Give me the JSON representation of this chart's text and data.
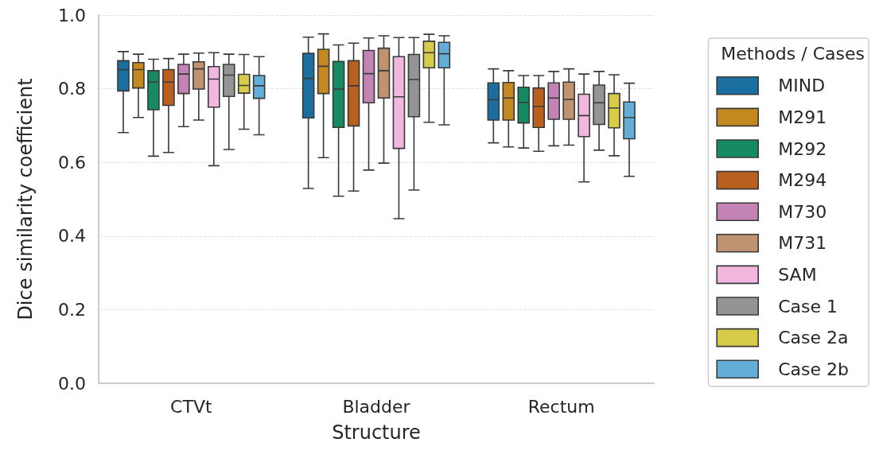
{
  "chart_data": {
    "type": "box",
    "xlabel": "Structure",
    "ylabel": "Dice similarity coefficient",
    "legend_title": "Methods / Cases",
    "legend": "right",
    "grid": "y",
    "categories": [
      "CTVt",
      "Bladder",
      "Rectum"
    ],
    "ylim": [
      0,
      1.0
    ],
    "yticks": [
      {
        "value": 0,
        "label": "0.0"
      },
      {
        "value": 0.2,
        "label": "0.2"
      },
      {
        "value": 0.4,
        "label": "0.4"
      },
      {
        "value": 0.6,
        "label": "0.6"
      },
      {
        "value": 0.8,
        "label": "0.8"
      },
      {
        "value": 1.0,
        "label": "1.0"
      }
    ],
    "series": [
      {
        "name": "MIND",
        "color": "#1a6fa0",
        "boxes": [
          {
            "low": 0.681,
            "q1": 0.794,
            "median": 0.852,
            "q3": 0.876,
            "high": 0.901
          },
          {
            "low": 0.529,
            "q1": 0.721,
            "median": 0.828,
            "q3": 0.896,
            "high": 0.94
          },
          {
            "low": 0.653,
            "q1": 0.715,
            "median": 0.77,
            "q3": 0.816,
            "high": 0.854
          }
        ]
      },
      {
        "name": "M291",
        "color": "#c48820",
        "boxes": [
          {
            "low": 0.722,
            "q1": 0.802,
            "median": 0.852,
            "q3": 0.871,
            "high": 0.894
          },
          {
            "low": 0.613,
            "q1": 0.787,
            "median": 0.861,
            "q3": 0.907,
            "high": 0.949
          },
          {
            "low": 0.642,
            "q1": 0.715,
            "median": 0.775,
            "q3": 0.817,
            "high": 0.849
          }
        ]
      },
      {
        "name": "M292",
        "color": "#168a63",
        "boxes": [
          {
            "low": 0.617,
            "q1": 0.743,
            "median": 0.818,
            "q3": 0.849,
            "high": 0.88
          },
          {
            "low": 0.508,
            "q1": 0.695,
            "median": 0.799,
            "q3": 0.874,
            "high": 0.919
          },
          {
            "low": 0.639,
            "q1": 0.707,
            "median": 0.763,
            "q3": 0.804,
            "high": 0.836
          }
        ]
      },
      {
        "name": "M294",
        "color": "#b9601f",
        "boxes": [
          {
            "low": 0.627,
            "q1": 0.755,
            "median": 0.818,
            "q3": 0.852,
            "high": 0.882
          },
          {
            "low": 0.522,
            "q1": 0.699,
            "median": 0.808,
            "q3": 0.876,
            "high": 0.924
          },
          {
            "low": 0.63,
            "q1": 0.695,
            "median": 0.752,
            "q3": 0.802,
            "high": 0.836
          }
        ]
      },
      {
        "name": "M730",
        "color": "#c383b5",
        "boxes": [
          {
            "low": 0.697,
            "q1": 0.787,
            "median": 0.84,
            "q3": 0.866,
            "high": 0.894
          },
          {
            "low": 0.579,
            "q1": 0.762,
            "median": 0.841,
            "q3": 0.904,
            "high": 0.938
          },
          {
            "low": 0.645,
            "q1": 0.717,
            "median": 0.775,
            "q3": 0.816,
            "high": 0.847
          }
        ]
      },
      {
        "name": "M731",
        "color": "#bf9270",
        "boxes": [
          {
            "low": 0.715,
            "q1": 0.799,
            "median": 0.854,
            "q3": 0.873,
            "high": 0.897
          },
          {
            "low": 0.598,
            "q1": 0.775,
            "median": 0.849,
            "q3": 0.91,
            "high": 0.944
          },
          {
            "low": 0.647,
            "q1": 0.717,
            "median": 0.771,
            "q3": 0.818,
            "high": 0.854
          }
        ]
      },
      {
        "name": "SAM",
        "color": "#f2b7de",
        "boxes": [
          {
            "low": 0.591,
            "q1": 0.75,
            "median": 0.826,
            "q3": 0.86,
            "high": 0.898
          },
          {
            "low": 0.447,
            "q1": 0.638,
            "median": 0.778,
            "q3": 0.887,
            "high": 0.939
          },
          {
            "low": 0.547,
            "q1": 0.67,
            "median": 0.727,
            "q3": 0.785,
            "high": 0.84
          }
        ]
      },
      {
        "name": "Case 1",
        "color": "#949494",
        "boxes": [
          {
            "low": 0.635,
            "q1": 0.779,
            "median": 0.837,
            "q3": 0.866,
            "high": 0.894
          },
          {
            "low": 0.525,
            "q1": 0.724,
            "median": 0.825,
            "q3": 0.893,
            "high": 0.939
          },
          {
            "low": 0.633,
            "q1": 0.703,
            "median": 0.762,
            "q3": 0.81,
            "high": 0.847
          }
        ]
      },
      {
        "name": "Case 2a",
        "color": "#d6cc4a",
        "boxes": [
          {
            "low": 0.69,
            "q1": 0.788,
            "median": 0.809,
            "q3": 0.839,
            "high": 0.893
          },
          {
            "low": 0.709,
            "q1": 0.857,
            "median": 0.898,
            "q3": 0.929,
            "high": 0.948
          },
          {
            "low": 0.618,
            "q1": 0.694,
            "median": 0.748,
            "q3": 0.787,
            "high": 0.838
          }
        ]
      },
      {
        "name": "Case 2b",
        "color": "#62aed9",
        "boxes": [
          {
            "low": 0.675,
            "q1": 0.774,
            "median": 0.808,
            "q3": 0.836,
            "high": 0.887
          },
          {
            "low": 0.702,
            "q1": 0.857,
            "median": 0.895,
            "q3": 0.926,
            "high": 0.944
          },
          {
            "low": 0.562,
            "q1": 0.664,
            "median": 0.722,
            "q3": 0.764,
            "high": 0.815
          }
        ]
      }
    ]
  }
}
